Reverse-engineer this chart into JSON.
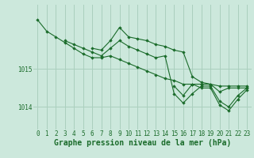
{
  "background_color": "#cce8dc",
  "grid_color": "#aacfbe",
  "line_color": "#1a6b2a",
  "marker_color": "#1a6b2a",
  "xlabel": "Graphe pression niveau de la mer (hPa)",
  "xlabel_fontsize": 7,
  "tick_fontsize": 5.5,
  "ytick_labels": [
    "1014",
    "1015"
  ],
  "ytick_values": [
    1014.0,
    1015.0
  ],
  "ylim": [
    1013.4,
    1016.7
  ],
  "xlim": [
    -0.5,
    23.5
  ],
  "xtick_values": [
    0,
    1,
    2,
    3,
    4,
    5,
    6,
    7,
    8,
    9,
    10,
    11,
    12,
    13,
    14,
    15,
    16,
    17,
    18,
    19,
    20,
    21,
    22,
    23
  ],
  "series": [
    [
      1016.3,
      1016.0,
      1015.85,
      1015.7,
      1015.55,
      1015.4,
      1015.3,
      1015.3,
      1015.35,
      1015.25,
      1015.15,
      1015.05,
      1014.95,
      1014.85,
      1014.75,
      1014.7,
      1014.6,
      1014.6,
      1014.6,
      1014.6,
      1014.55,
      1014.55,
      1014.55,
      1014.55
    ],
    [
      null,
      null,
      null,
      1015.75,
      1015.65,
      1015.55,
      1015.45,
      1015.35,
      1015.55,
      1015.75,
      1015.6,
      1015.5,
      1015.4,
      1015.3,
      1015.35,
      1014.35,
      1014.1,
      1014.35,
      1014.55,
      1014.55,
      1014.15,
      1014.0,
      1014.3,
      1014.5
    ],
    [
      null,
      null,
      null,
      null,
      null,
      null,
      1015.55,
      1015.5,
      1015.75,
      1016.1,
      1015.85,
      1015.8,
      1015.75,
      1015.65,
      1015.6,
      1015.5,
      1015.45,
      1014.8,
      1014.65,
      1014.6,
      1014.4,
      1014.5,
      1014.5,
      1014.5
    ],
    [
      null,
      null,
      null,
      null,
      null,
      null,
      null,
      null,
      null,
      null,
      null,
      null,
      null,
      null,
      null,
      1014.55,
      1014.3,
      1014.6,
      1014.5,
      1014.5,
      1014.05,
      1013.9,
      1014.2,
      1014.45
    ]
  ]
}
